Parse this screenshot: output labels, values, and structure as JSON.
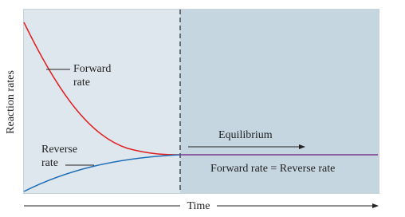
{
  "axes": {
    "y_label": "Reaction rates",
    "x_label": "Time"
  },
  "curves": {
    "forward": [
      "Forward",
      "rate"
    ],
    "reverse": [
      "Reverse",
      "rate"
    ]
  },
  "annotations": {
    "equilibrium": "Equilibrium",
    "equality": "Forward rate = Reverse rate"
  }
}
